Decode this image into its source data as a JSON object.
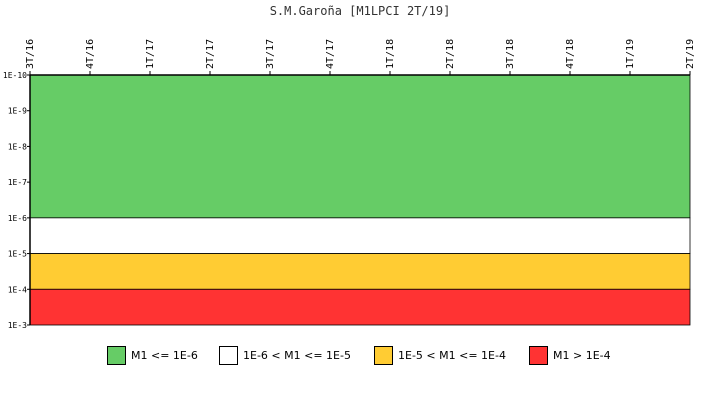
{
  "chart_data": {
    "type": "area",
    "title": "S.M.Garoña [M1LPCI 2T/19]",
    "xlabel": "",
    "ylabel": "",
    "x_ticks": [
      "3T/16",
      "4T/16",
      "1T/17",
      "2T/17",
      "3T/17",
      "4T/17",
      "1T/18",
      "2T/18",
      "3T/18",
      "4T/18",
      "1T/19",
      "2T/19"
    ],
    "y_ticks": [
      "1E-10",
      "1E-9",
      "1E-8",
      "1E-7",
      "1E-6",
      "1E-5",
      "1E-4",
      "1E-3"
    ],
    "y_scale": "log",
    "y_axis_inverted": true,
    "ylim": [
      1e-10,
      0.001
    ],
    "legend_placement": "bottom",
    "grid": false,
    "bands": [
      {
        "name": "M1 <= 1E-6",
        "from": 1e-10,
        "to": 1e-06,
        "color": "#66cc66"
      },
      {
        "name": "1E-6 < M1 <= 1E-5",
        "from": 1e-06,
        "to": 1e-05,
        "color": "#ffffff"
      },
      {
        "name": "1E-5 < M1 <= 1E-4",
        "from": 1e-05,
        "to": 0.0001,
        "color": "#ffcc33"
      },
      {
        "name": "M1 > 1E-4",
        "from": 0.0001,
        "to": 0.001,
        "color": "#ff3333"
      }
    ]
  }
}
